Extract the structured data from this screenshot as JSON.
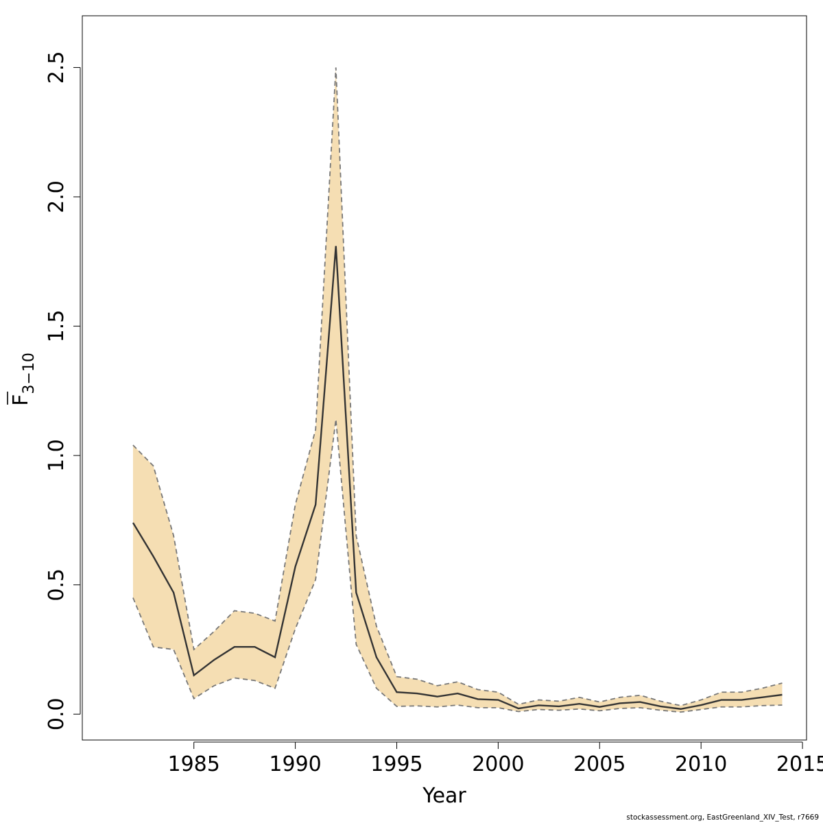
{
  "chart_data": {
    "type": "line",
    "title": "",
    "xlabel": "Year",
    "ylabel_main": "F",
    "ylabel_sub": "3−10",
    "xlim": [
      1979.5,
      2015.2
    ],
    "ylim": [
      -0.1,
      2.7
    ],
    "xticks": [
      1985,
      1990,
      1995,
      2000,
      2005,
      2010,
      2015
    ],
    "xtick_labels": [
      "1985",
      "1990",
      "1995",
      "2000",
      "2005",
      "2010",
      "2015"
    ],
    "yticks": [
      0.0,
      0.5,
      1.0,
      1.5,
      2.0,
      2.5
    ],
    "ytick_labels": [
      "0.0",
      "0.5",
      "1.0",
      "1.5",
      "2.0",
      "2.5"
    ],
    "grid": false,
    "band_color": "#f5deb3",
    "line_color": "#333333",
    "bound_color": "#777777",
    "x": [
      1982,
      1983,
      1984,
      1985,
      1986,
      1987,
      1988,
      1989,
      1990,
      1991,
      1992,
      1993,
      1994,
      1995,
      1996,
      1997,
      1998,
      1999,
      2000,
      2001,
      2002,
      2003,
      2004,
      2005,
      2006,
      2007,
      2008,
      2009,
      2010,
      2011,
      2012,
      2013,
      2014
    ],
    "series": [
      {
        "role": "estimate",
        "values": [
          0.74,
          0.61,
          0.47,
          0.15,
          0.21,
          0.26,
          0.26,
          0.22,
          0.57,
          0.81,
          1.81,
          0.47,
          0.22,
          0.085,
          0.08,
          0.068,
          0.08,
          0.058,
          0.055,
          0.022,
          0.034,
          0.03,
          0.04,
          0.028,
          0.042,
          0.047,
          0.03,
          0.02,
          0.035,
          0.055,
          0.055,
          0.065,
          0.075
        ]
      },
      {
        "role": "upper",
        "values": [
          1.04,
          0.96,
          0.69,
          0.25,
          0.32,
          0.4,
          0.39,
          0.36,
          0.81,
          1.1,
          2.5,
          0.69,
          0.34,
          0.145,
          0.135,
          0.11,
          0.125,
          0.095,
          0.085,
          0.038,
          0.055,
          0.05,
          0.065,
          0.047,
          0.065,
          0.073,
          0.05,
          0.033,
          0.055,
          0.085,
          0.085,
          0.1,
          0.12
        ]
      },
      {
        "role": "lower",
        "values": [
          0.45,
          0.26,
          0.25,
          0.06,
          0.11,
          0.14,
          0.13,
          0.1,
          0.33,
          0.52,
          1.14,
          0.27,
          0.1,
          0.03,
          0.032,
          0.028,
          0.035,
          0.025,
          0.025,
          0.01,
          0.018,
          0.015,
          0.02,
          0.013,
          0.022,
          0.025,
          0.015,
          0.008,
          0.018,
          0.028,
          0.028,
          0.033,
          0.035
        ]
      }
    ]
  },
  "footnote": "stockassessment.org, EastGreenland_XIV_Test, r7669"
}
